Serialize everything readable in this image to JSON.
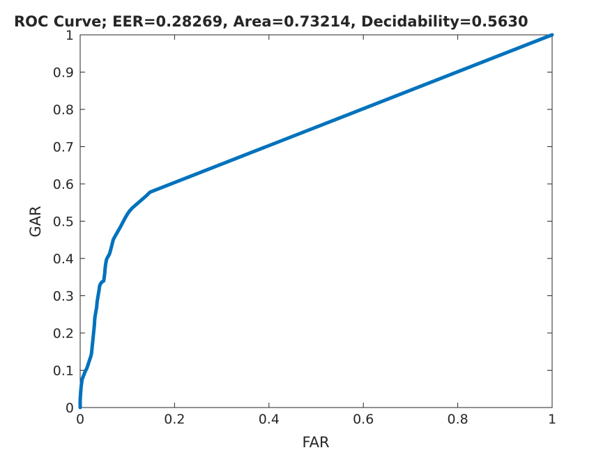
{
  "chart_data": {
    "type": "line",
    "title": "ROC Curve;   EER=0.28269,   Area=0.73214,   Decidability=0.5630",
    "xlabel": "FAR",
    "ylabel": "GAR",
    "xlim": [
      0,
      1
    ],
    "ylim": [
      0,
      1
    ],
    "x_ticks": [
      0,
      0.2,
      0.4,
      0.6,
      0.8,
      1
    ],
    "y_ticks": [
      0,
      0.1,
      0.2,
      0.3,
      0.4,
      0.5,
      0.6,
      0.7,
      0.8,
      0.9,
      1
    ],
    "x_tick_labels": [
      "0",
      "0.2",
      "0.4",
      "0.6",
      "0.8",
      "1"
    ],
    "y_tick_labels": [
      "0",
      "0.1",
      "0.2",
      "0.3",
      "0.4",
      "0.5",
      "0.6",
      "0.7",
      "0.8",
      "0.9",
      "1"
    ],
    "grid": false,
    "legend": "none",
    "line_color": "#0072BD",
    "series": [
      {
        "x": [
          0.0,
          0.0,
          0.001,
          0.002,
          0.003,
          0.004,
          0.006,
          0.008,
          0.01,
          0.012,
          0.014,
          0.016,
          0.018,
          0.02,
          0.022,
          0.024,
          0.026,
          0.028,
          0.03,
          0.031,
          0.033,
          0.035,
          0.036,
          0.038,
          0.04,
          0.041,
          0.043,
          0.045,
          0.046,
          0.048,
          0.05,
          0.052,
          0.053,
          0.054,
          0.055,
          0.056,
          0.058,
          0.06,
          0.062,
          0.064,
          0.066,
          0.068,
          0.07,
          0.072,
          0.075,
          0.08,
          0.085,
          0.09,
          0.095,
          0.1,
          0.105,
          0.11,
          0.12,
          0.13,
          0.14,
          0.148,
          1.0
        ],
        "y": [
          0.0,
          0.02,
          0.04,
          0.055,
          0.065,
          0.075,
          0.082,
          0.088,
          0.095,
          0.1,
          0.105,
          0.112,
          0.12,
          0.128,
          0.135,
          0.145,
          0.17,
          0.195,
          0.22,
          0.24,
          0.255,
          0.27,
          0.285,
          0.3,
          0.315,
          0.325,
          0.332,
          0.335,
          0.337,
          0.338,
          0.34,
          0.36,
          0.375,
          0.385,
          0.392,
          0.398,
          0.403,
          0.407,
          0.412,
          0.42,
          0.43,
          0.44,
          0.45,
          0.455,
          0.462,
          0.473,
          0.484,
          0.496,
          0.508,
          0.519,
          0.528,
          0.535,
          0.546,
          0.557,
          0.568,
          0.578,
          1.0
        ]
      }
    ]
  }
}
